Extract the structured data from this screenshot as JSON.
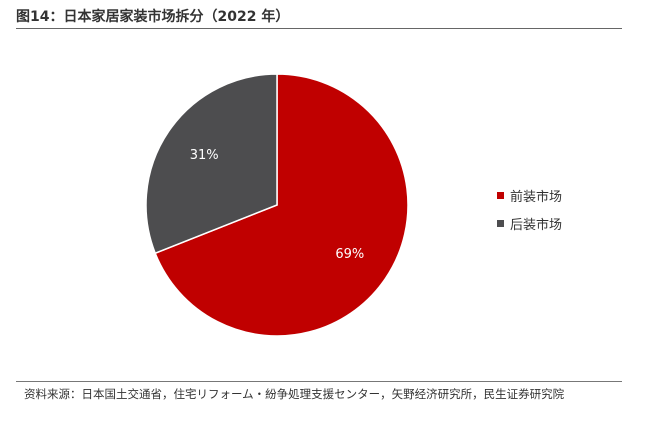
{
  "figure": {
    "title": "图14：日本家居家装市场拆分（2022 年）",
    "source": "资料来源：日本国土交通省，住宅リフォーム・紛争処理支援センター，矢野经济研究所，民生证券研究院"
  },
  "chart_data": {
    "type": "pie",
    "title": "",
    "slices": [
      {
        "label": "前装市场",
        "value": 69,
        "display": "69%",
        "color": "#C00000"
      },
      {
        "label": "后装市场",
        "value": 31,
        "display": "31%",
        "color": "#4D4D4F"
      }
    ],
    "legend": "right",
    "start_angle_deg": 0,
    "direction": "clockwise"
  }
}
